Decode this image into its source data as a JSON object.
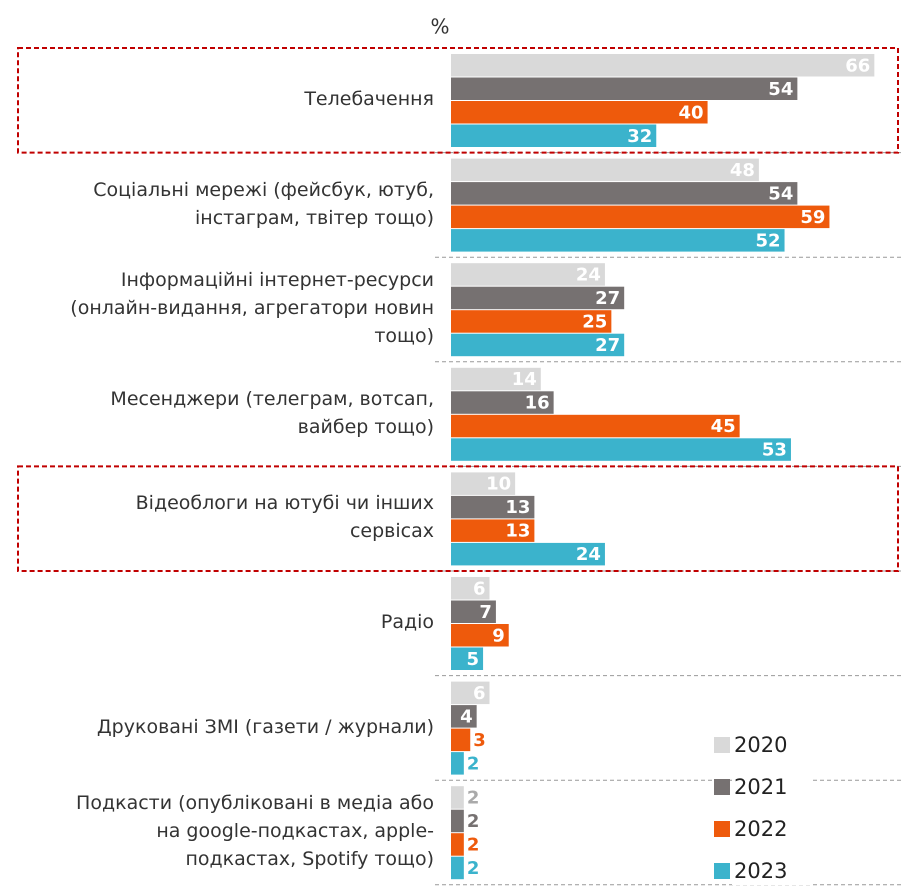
{
  "chart_data": {
    "type": "barh",
    "title": "%",
    "categories": [
      "Телебачення",
      "Соціальні мережі (фейсбук, ютуб,\nінстаграм, твітер тощо)",
      "Інформаційні інтернет-ресурси\n(онлайн-видання, агрегатори новин\nтощо)",
      "Месенджери (телеграм, вотсап,\nвайбер тощо)",
      "Відеоблоги на ютубі  чи інших\nсервісах",
      "Радіо",
      "Друковані ЗМІ (газети / журнали)",
      "Подкасти (опубліковані в медіа або\nна google-подкастах, apple-\nподкастах, Spotify тощо)"
    ],
    "series": [
      {
        "name": "2020",
        "color": "#d9d9d9",
        "values": [
          66,
          48,
          24,
          14,
          10,
          6,
          6,
          2
        ]
      },
      {
        "name": "2021",
        "color": "#767171",
        "values": [
          54,
          54,
          27,
          16,
          13,
          7,
          4,
          2
        ]
      },
      {
        "name": "2022",
        "color": "#ee5a0c",
        "values": [
          40,
          59,
          25,
          45,
          13,
          9,
          3,
          2
        ]
      },
      {
        "name": "2023",
        "color": "#3bb3cc",
        "values": [
          32,
          52,
          27,
          53,
          24,
          5,
          2,
          2
        ]
      }
    ],
    "xlim": [
      0,
      70
    ],
    "legend": "lower right",
    "highlighted": [
      0,
      4
    ],
    "highlight_color": "#c00000"
  }
}
